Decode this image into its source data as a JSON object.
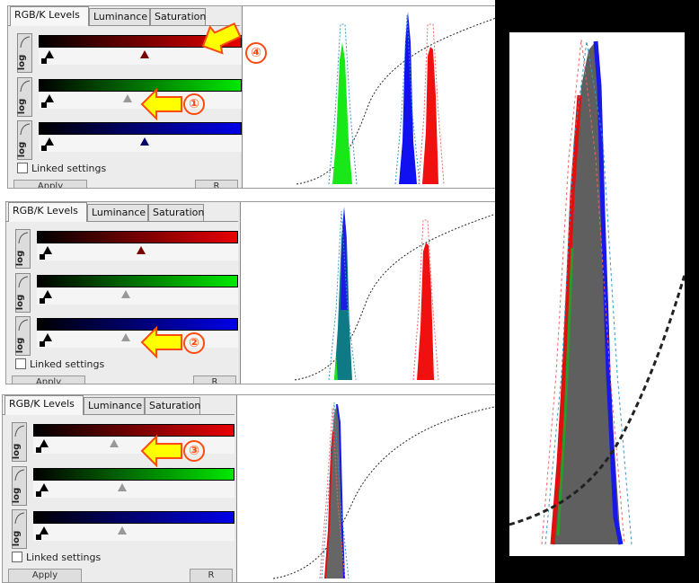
{
  "tabs": [
    "RGB/K Levels",
    "Luminance",
    "Saturation"
  ],
  "log_label": "log",
  "linked_label": "Linked settings",
  "bottom_buttons": [
    "Apply",
    "R"
  ],
  "annotations": [
    "④",
    "①",
    "②",
    "③"
  ],
  "panels": [
    {
      "marks": {
        "red": 0.52,
        "green": 0.44,
        "blue": 0.52
      },
      "gray_marks": [
        "green"
      ]
    },
    {
      "marks": {
        "red": 0.52,
        "green": 0.44,
        "blue": 0.44
      },
      "gray_marks": [
        "green",
        "blue"
      ]
    },
    {
      "marks": {
        "red": 0.4,
        "green": 0.44,
        "blue": 0.44
      },
      "gray_marks": [
        "red",
        "green",
        "blue"
      ]
    }
  ],
  "colors": {
    "red": "#e01010",
    "green": "#1ed51e",
    "blue": "#1818e8",
    "annotation": "#ff4a10",
    "arrow": "#ffff00"
  }
}
